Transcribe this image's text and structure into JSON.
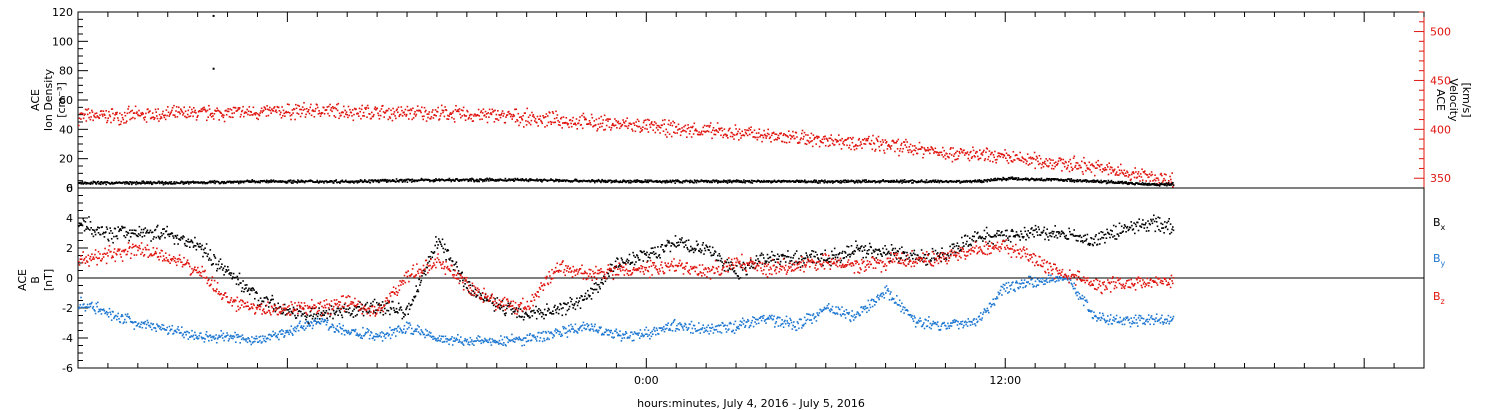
{
  "chart_data": [
    {
      "type": "scatter",
      "panel": "top",
      "ylabel_lines": [
        "ACE",
        "Ion Density",
        "[cm⁻³]"
      ],
      "ylim": [
        0,
        120
      ],
      "yticks": [
        0,
        20,
        40,
        60,
        80,
        100,
        120
      ],
      "y2label_lines": [
        "ACE",
        "Velocity",
        "[km/s]"
      ],
      "y2lim": [
        340,
        520
      ],
      "y2ticks": [
        350,
        400,
        450,
        500
      ],
      "x_hours_range": [
        -19,
        26
      ],
      "series": [
        {
          "quantity": "ion density",
          "axis": "left",
          "color": "#000000",
          "x_hours": [
            -19,
            -16,
            -13,
            -10,
            -7,
            -4,
            -1,
            2,
            5,
            8,
            11,
            12,
            14,
            15,
            16,
            17,
            17.6
          ],
          "values": [
            4,
            4,
            5,
            5,
            6,
            6,
            5,
            5,
            5,
            5,
            5,
            7,
            6,
            5,
            4,
            3,
            3
          ]
        },
        {
          "quantity": "velocity",
          "axis": "right",
          "color": "#e0140f",
          "x_hours": [
            -19,
            -17,
            -15,
            -13,
            -11,
            -9,
            -7,
            -5,
            -3,
            -1,
            1,
            3,
            5,
            7,
            9,
            11,
            13,
            15,
            16,
            17,
            17.6
          ],
          "values": [
            414,
            415,
            417,
            418,
            420,
            418,
            417,
            415,
            410,
            406,
            401,
            397,
            392,
            388,
            381,
            374,
            369,
            362,
            356,
            351,
            349
          ]
        }
      ],
      "outliers": [
        {
          "x_hours": -14.5,
          "value": 118
        },
        {
          "x_hours": -14.5,
          "value": 82
        }
      ]
    },
    {
      "type": "scatter",
      "panel": "bottom",
      "ylabel_lines": [
        "ACE",
        "B",
        "[nT]"
      ],
      "ylim": [
        -6,
        6
      ],
      "yticks": [
        -6,
        -4,
        -2,
        0,
        2,
        4,
        6
      ],
      "x_hours_range": [
        -19,
        26
      ],
      "xticks": [
        0,
        12
      ],
      "xticklabels": [
        "0:00",
        "12:00"
      ],
      "xlabel": "hours:minutes, July  4, 2016 - July  5, 2016",
      "legend": [
        "B",
        "B",
        "B"
      ],
      "legend_subscripts": [
        "x",
        "y",
        "z"
      ],
      "legend_colors": [
        "#000000",
        "#1f78d1",
        "#e0140f"
      ],
      "series": [
        {
          "component": "x",
          "color": "#000000",
          "x_hours": [
            -19,
            -18,
            -17,
            -16,
            -15,
            -14,
            -13,
            -12,
            -11,
            -10,
            -9,
            -8,
            -7,
            -6,
            -5,
            -4,
            -3,
            -2,
            -1,
            0,
            1,
            2,
            3,
            4,
            5,
            6,
            7,
            8,
            9,
            10,
            11,
            12,
            13,
            14,
            15,
            16,
            17,
            17.6
          ],
          "values": [
            3.8,
            3.0,
            3.1,
            3.0,
            2.2,
            0.4,
            -1.2,
            -2.2,
            -2.5,
            -2.2,
            -1.8,
            -2.2,
            2.6,
            -0.6,
            -1.8,
            -2.3,
            -2.1,
            -1.2,
            1.0,
            1.6,
            2.4,
            1.9,
            0.5,
            1.4,
            1.3,
            1.3,
            2.0,
            1.8,
            1.4,
            1.6,
            2.8,
            2.9,
            3.1,
            2.9,
            2.5,
            3.4,
            3.7,
            3.4
          ]
        },
        {
          "component": "y",
          "color": "#1f78d1",
          "x_hours": [
            -19,
            -18,
            -17,
            -16,
            -15,
            -14,
            -13,
            -12,
            -11,
            -10,
            -9,
            -8,
            -7,
            -6,
            -5,
            -4,
            -3,
            -2,
            -1,
            0,
            1,
            2,
            3,
            4,
            5,
            6,
            7,
            8,
            9,
            10,
            11,
            12,
            13,
            14,
            15,
            16,
            17,
            17.6
          ],
          "values": [
            -1.6,
            -2.3,
            -3.0,
            -3.4,
            -3.8,
            -3.9,
            -4.1,
            -3.5,
            -2.8,
            -3.5,
            -3.9,
            -3.2,
            -4.0,
            -4.1,
            -4.2,
            -4.0,
            -3.6,
            -3.2,
            -3.8,
            -3.6,
            -3.1,
            -3.4,
            -3.2,
            -2.6,
            -3.1,
            -2.0,
            -2.5,
            -0.8,
            -2.9,
            -3.1,
            -2.8,
            -0.5,
            -0.2,
            0.1,
            -2.6,
            -2.8,
            -2.8,
            -2.7
          ]
        },
        {
          "component": "z",
          "color": "#e0140f",
          "x_hours": [
            -19,
            -18,
            -17,
            -16,
            -15,
            -14,
            -13,
            -12,
            -11,
            -10,
            -9,
            -8,
            -7,
            -6,
            -5,
            -4,
            -3,
            -2,
            -1,
            0,
            1,
            2,
            3,
            4,
            5,
            6,
            7,
            8,
            9,
            10,
            11,
            12,
            13,
            14,
            15,
            16,
            17,
            17.6
          ],
          "values": [
            1.2,
            1.6,
            1.9,
            1.4,
            0.6,
            -1.5,
            -2.1,
            -1.9,
            -2.0,
            -1.6,
            -2.2,
            0.2,
            1.3,
            -0.4,
            -1.6,
            -2.0,
            0.8,
            0.3,
            0.5,
            0.6,
            0.9,
            0.4,
            1.1,
            0.7,
            0.9,
            1.2,
            0.8,
            1.1,
            1.3,
            1.4,
            1.9,
            2.1,
            1.2,
            0.2,
            -0.4,
            -0.3,
            -0.2,
            -0.2
          ]
        }
      ]
    }
  ]
}
